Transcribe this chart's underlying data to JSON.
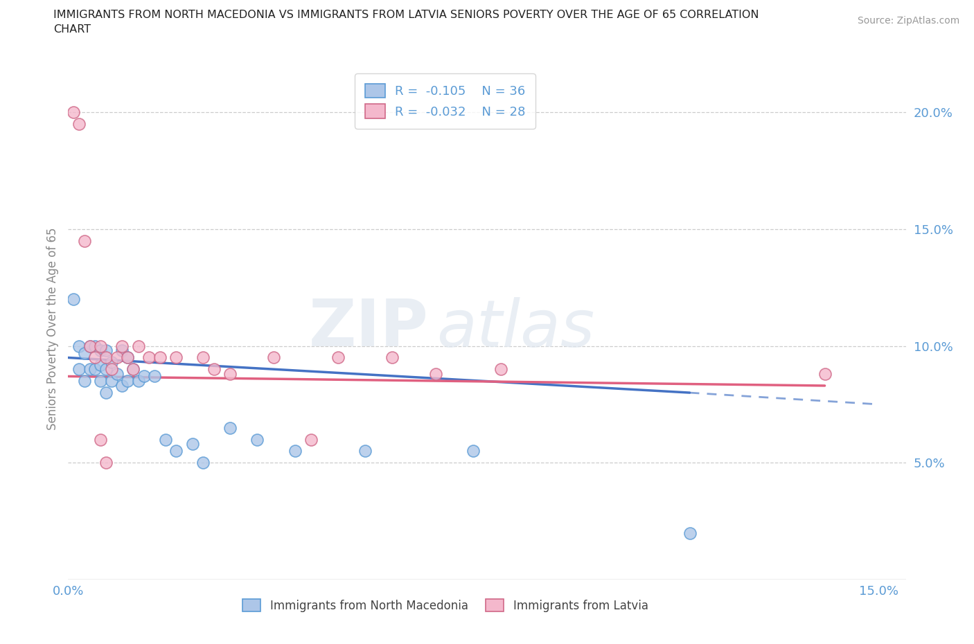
{
  "title_line1": "IMMIGRANTS FROM NORTH MACEDONIA VS IMMIGRANTS FROM LATVIA SENIORS POVERTY OVER THE AGE OF 65 CORRELATION",
  "title_line2": "CHART",
  "source": "Source: ZipAtlas.com",
  "ylabel": "Seniors Poverty Over the Age of 65",
  "xlim": [
    0.0,
    0.155
  ],
  "ylim": [
    0.0,
    0.215
  ],
  "xticks": [
    0.0,
    0.025,
    0.05,
    0.075,
    0.1,
    0.125,
    0.15
  ],
  "xtick_labels": [
    "0.0%",
    "",
    "",
    "",
    "",
    "",
    "15.0%"
  ],
  "yticks": [
    0.05,
    0.1,
    0.15,
    0.2
  ],
  "ytick_labels": [
    "5.0%",
    "10.0%",
    "15.0%",
    "20.0%"
  ],
  "color_blue": "#adc6e8",
  "color_pink": "#f4b8cc",
  "edge_blue": "#5b9bd5",
  "edge_pink": "#d06888",
  "trend_blue": "#4472c4",
  "trend_pink": "#e06080",
  "legend_R_blue": "-0.105",
  "legend_N_blue": "36",
  "legend_R_pink": "-0.032",
  "legend_N_pink": "28",
  "nm_x": [
    0.001,
    0.002,
    0.002,
    0.003,
    0.003,
    0.004,
    0.004,
    0.005,
    0.005,
    0.006,
    0.006,
    0.006,
    0.007,
    0.007,
    0.007,
    0.008,
    0.008,
    0.009,
    0.01,
    0.01,
    0.011,
    0.011,
    0.012,
    0.013,
    0.014,
    0.016,
    0.018,
    0.02,
    0.023,
    0.025,
    0.03,
    0.035,
    0.042,
    0.055,
    0.075,
    0.115
  ],
  "nm_y": [
    0.12,
    0.1,
    0.09,
    0.097,
    0.085,
    0.1,
    0.09,
    0.1,
    0.09,
    0.098,
    0.092,
    0.085,
    0.098,
    0.09,
    0.08,
    0.093,
    0.085,
    0.088,
    0.098,
    0.083,
    0.095,
    0.085,
    0.09,
    0.085,
    0.087,
    0.087,
    0.06,
    0.055,
    0.058,
    0.05,
    0.065,
    0.06,
    0.055,
    0.055,
    0.055,
    0.02
  ],
  "lv_x": [
    0.001,
    0.002,
    0.003,
    0.004,
    0.005,
    0.006,
    0.006,
    0.007,
    0.007,
    0.008,
    0.009,
    0.01,
    0.011,
    0.012,
    0.013,
    0.015,
    0.017,
    0.02,
    0.025,
    0.027,
    0.03,
    0.038,
    0.045,
    0.05,
    0.06,
    0.068,
    0.08,
    0.14
  ],
  "lv_y": [
    0.2,
    0.195,
    0.145,
    0.1,
    0.095,
    0.1,
    0.06,
    0.095,
    0.05,
    0.09,
    0.095,
    0.1,
    0.095,
    0.09,
    0.1,
    0.095,
    0.095,
    0.095,
    0.095,
    0.09,
    0.088,
    0.095,
    0.06,
    0.095,
    0.095,
    0.088,
    0.09,
    0.088
  ],
  "trend_line_blue_x0": 0.0,
  "trend_line_blue_y0": 0.095,
  "trend_line_blue_x1": 0.115,
  "trend_line_blue_y1": 0.08,
  "trend_line_blue_dash_x1": 0.15,
  "trend_line_blue_dash_y1": 0.075,
  "trend_line_pink_x0": 0.0,
  "trend_line_pink_y0": 0.087,
  "trend_line_pink_x1": 0.14,
  "trend_line_pink_y1": 0.083
}
